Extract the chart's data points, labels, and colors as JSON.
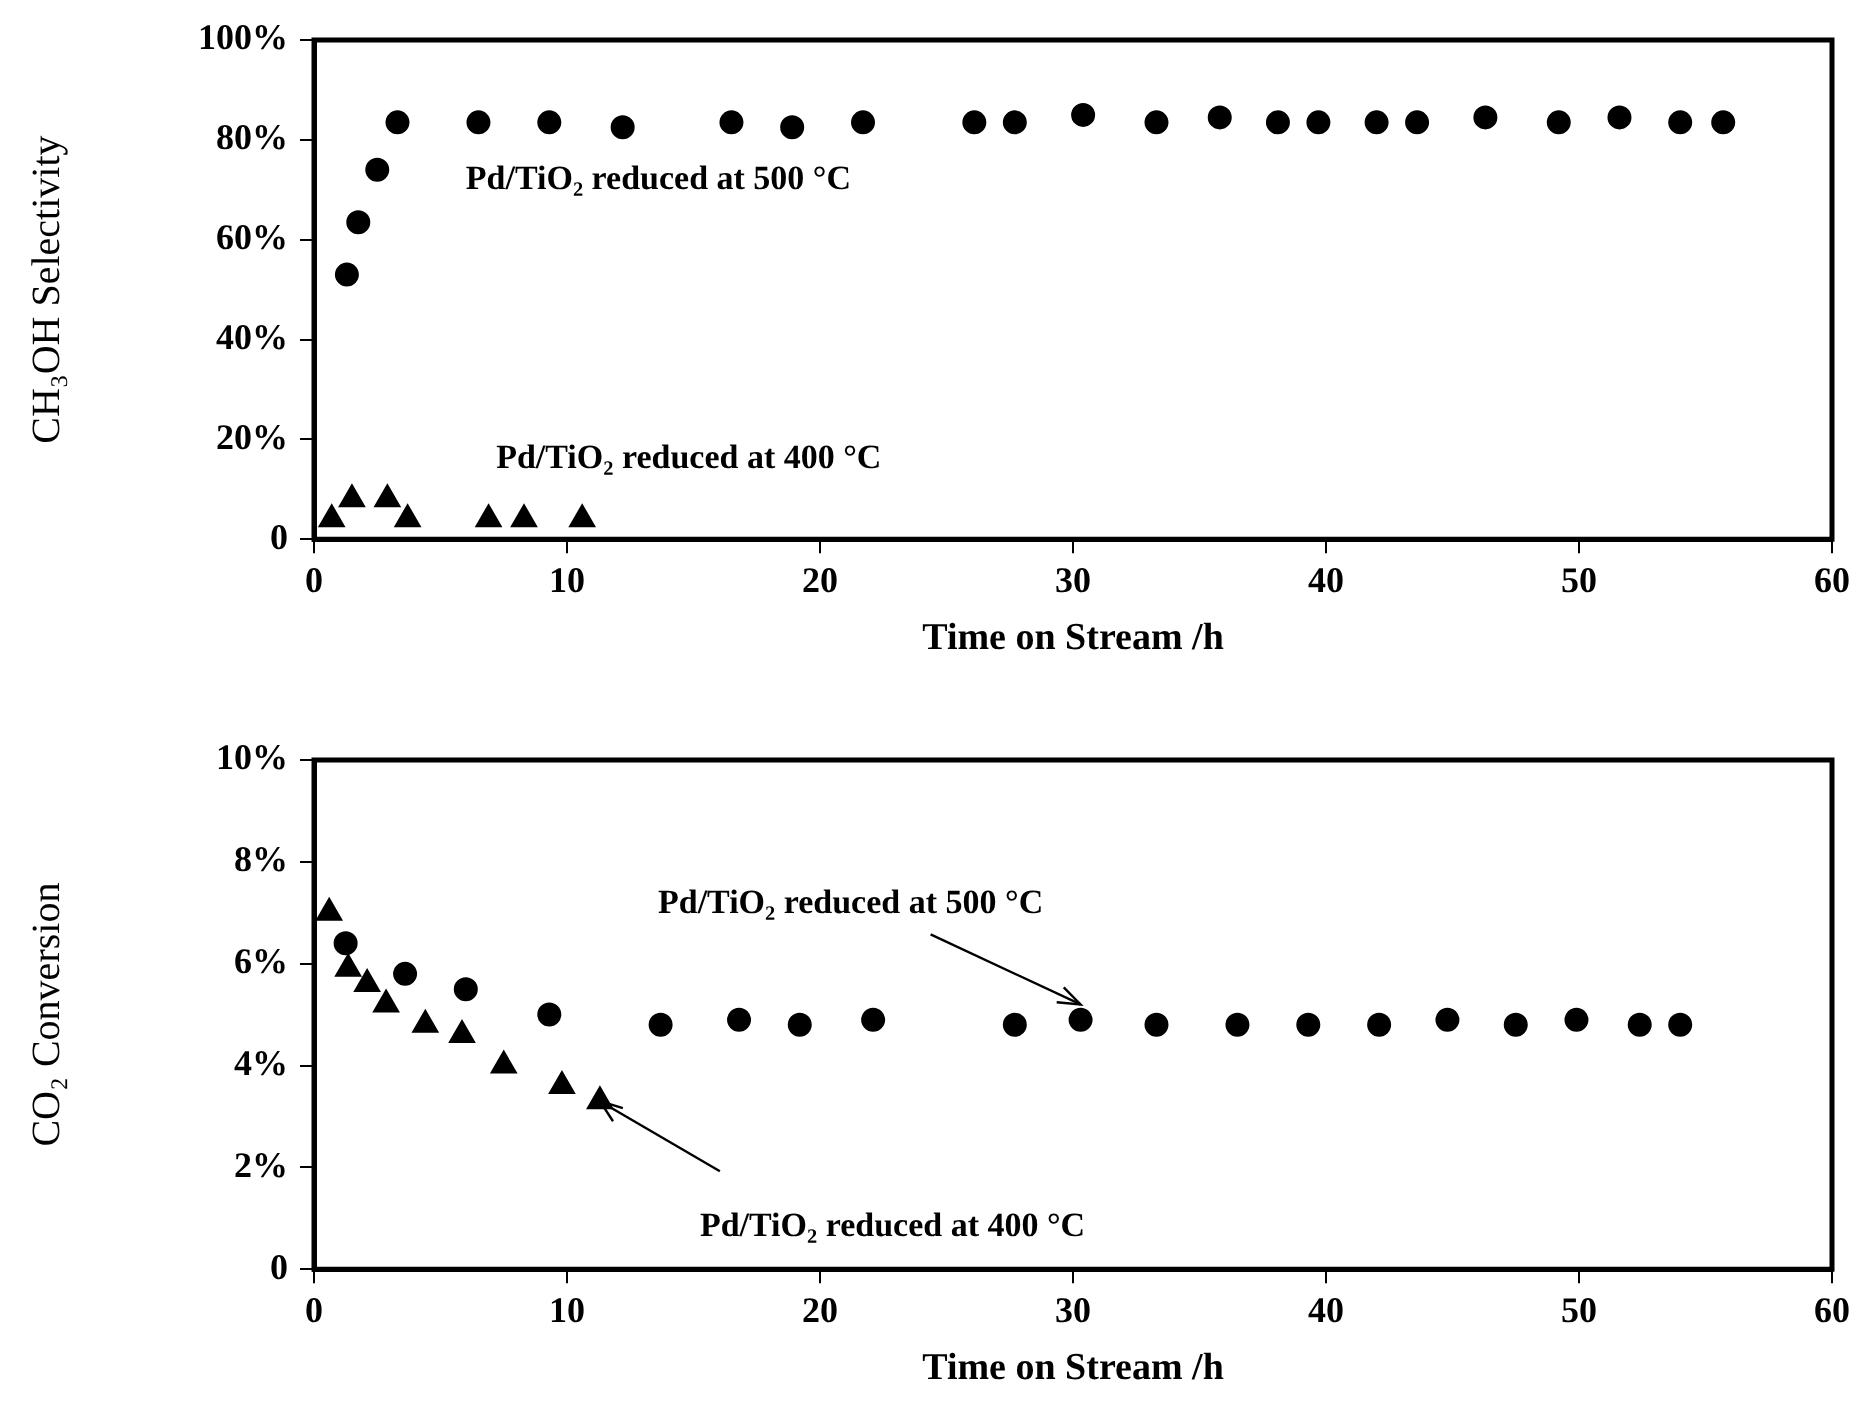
{
  "chart_data": [
    {
      "type": "scatter",
      "xlabel": "Time on Stream /h",
      "ylabel": "CH₃OH Selectivity",
      "xlim": [
        0,
        60
      ],
      "xticks": [
        0,
        10,
        20,
        30,
        40,
        50,
        60
      ],
      "ylim": [
        0,
        100
      ],
      "yticks": [
        0,
        {
          "value": 20,
          "label": "20%"
        },
        {
          "value": 40,
          "label": "40%"
        },
        {
          "value": 60,
          "label": "60%"
        },
        {
          "value": 80,
          "label": "80%"
        },
        {
          "value": 100,
          "label": "100%"
        }
      ],
      "grid": false,
      "legend": false,
      "series": [
        {
          "name": "Pd/TiO₂ reduced at 500 °C",
          "color": "#000000",
          "marker": "circle",
          "x": [
            1.3,
            1.75,
            2.5,
            3.3,
            6.5,
            9.3,
            12.2,
            16.5,
            18.9,
            21.7,
            26.1,
            27.7,
            30.4,
            33.3,
            35.8,
            38.1,
            39.7,
            42.0,
            43.6,
            46.3,
            49.2,
            51.6,
            54.0,
            55.7
          ],
          "values": [
            53,
            63.5,
            74,
            83.5,
            83.5,
            83.5,
            82.5,
            83.5,
            82.5,
            83.5,
            83.5,
            83.5,
            85,
            83.5,
            84.5,
            83.5,
            83.5,
            83.5,
            83.5,
            84.5,
            83.5,
            84.5,
            83.5,
            83.5
          ]
        },
        {
          "name": "Pd/TiO₂ reduced at 400 °C",
          "color": "#000000",
          "marker": "triangle",
          "x": [
            0.7,
            1.5,
            2.9,
            3.7,
            6.9,
            8.3,
            10.6
          ],
          "values": [
            4,
            8,
            8,
            4,
            4,
            4,
            4
          ]
        }
      ]
    },
    {
      "type": "scatter",
      "xlabel": "Time on Stream /h",
      "ylabel": "CO₂ Conversion",
      "xlim": [
        0,
        60
      ],
      "xticks": [
        0,
        10,
        20,
        30,
        40,
        50,
        60
      ],
      "ylim": [
        0,
        10
      ],
      "yticks": [
        0,
        {
          "value": 2,
          "label": "2%"
        },
        {
          "value": 4,
          "label": "4%"
        },
        {
          "value": 6,
          "label": "6%"
        },
        {
          "value": 8,
          "label": "8%"
        },
        {
          "value": 10,
          "label": "10%"
        }
      ],
      "grid": false,
      "legend": false,
      "annotations": [
        {
          "text": "Pd/TiO₂ reduced at 500 °C",
          "x": 30.3,
          "y": 5.2
        },
        {
          "text": "Pd/TiO₂ reduced at 400 °C",
          "x": 11.3,
          "y": 3.3
        }
      ],
      "series": [
        {
          "color": "#000000",
          "marker": "circle",
          "x": [
            1.25,
            3.6,
            6.0,
            9.3,
            13.7,
            16.8,
            19.2,
            22.1,
            27.7,
            30.3,
            33.3,
            36.5,
            39.3,
            42.1,
            44.8,
            47.5,
            49.9,
            52.4,
            54.0
          ],
          "values": [
            6.4,
            5.8,
            5.5,
            5.0,
            4.8,
            4.9,
            4.8,
            4.9,
            4.8,
            4.9,
            4.8,
            4.8,
            4.8,
            4.8,
            4.9,
            4.8,
            4.9,
            4.8,
            4.8
          ]
        },
        {
          "color": "#000000",
          "marker": "triangle",
          "x": [
            0.6,
            1.35,
            2.1,
            2.85,
            4.4,
            5.85,
            7.5,
            9.8,
            11.3
          ],
          "values": [
            7.0,
            5.9,
            5.6,
            5.2,
            4.8,
            4.6,
            4.0,
            3.6,
            3.3
          ]
        }
      ]
    }
  ]
}
